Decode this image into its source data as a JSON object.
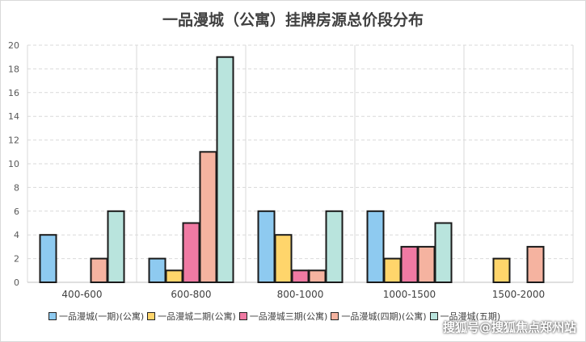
{
  "chart_data": {
    "type": "bar",
    "title": "一品漫城（公寓）挂牌房源总价段分布",
    "categories": [
      "400-600",
      "600-800",
      "800-1000",
      "1000-1500",
      "1500-2000"
    ],
    "series": [
      {
        "name": "一品漫城(一期)(公寓)",
        "color": "#8ecaf0",
        "values": [
          4,
          2,
          6,
          6,
          0
        ]
      },
      {
        "name": "一品漫城二期(公寓)",
        "color": "#ffd56b",
        "values": [
          0,
          1,
          4,
          2,
          2
        ]
      },
      {
        "name": "一品漫城三期(公寓)",
        "color": "#f07aa3",
        "values": [
          0,
          5,
          1,
          3,
          0
        ]
      },
      {
        "name": "一品漫城(四期)(公寓)",
        "color": "#f5b3a0",
        "values": [
          2,
          11,
          1,
          3,
          3
        ]
      },
      {
        "name": "一品漫城(五期)",
        "color": "#b9e4dd",
        "values": [
          6,
          19,
          6,
          5,
          0
        ]
      }
    ],
    "ylim": [
      0,
      20
    ],
    "yticks": [
      0,
      2,
      4,
      6,
      8,
      10,
      12,
      14,
      16,
      18,
      20
    ],
    "grid": true,
    "legend_position": "bottom"
  },
  "watermark": "搜狐号@搜狐焦点郑州站"
}
